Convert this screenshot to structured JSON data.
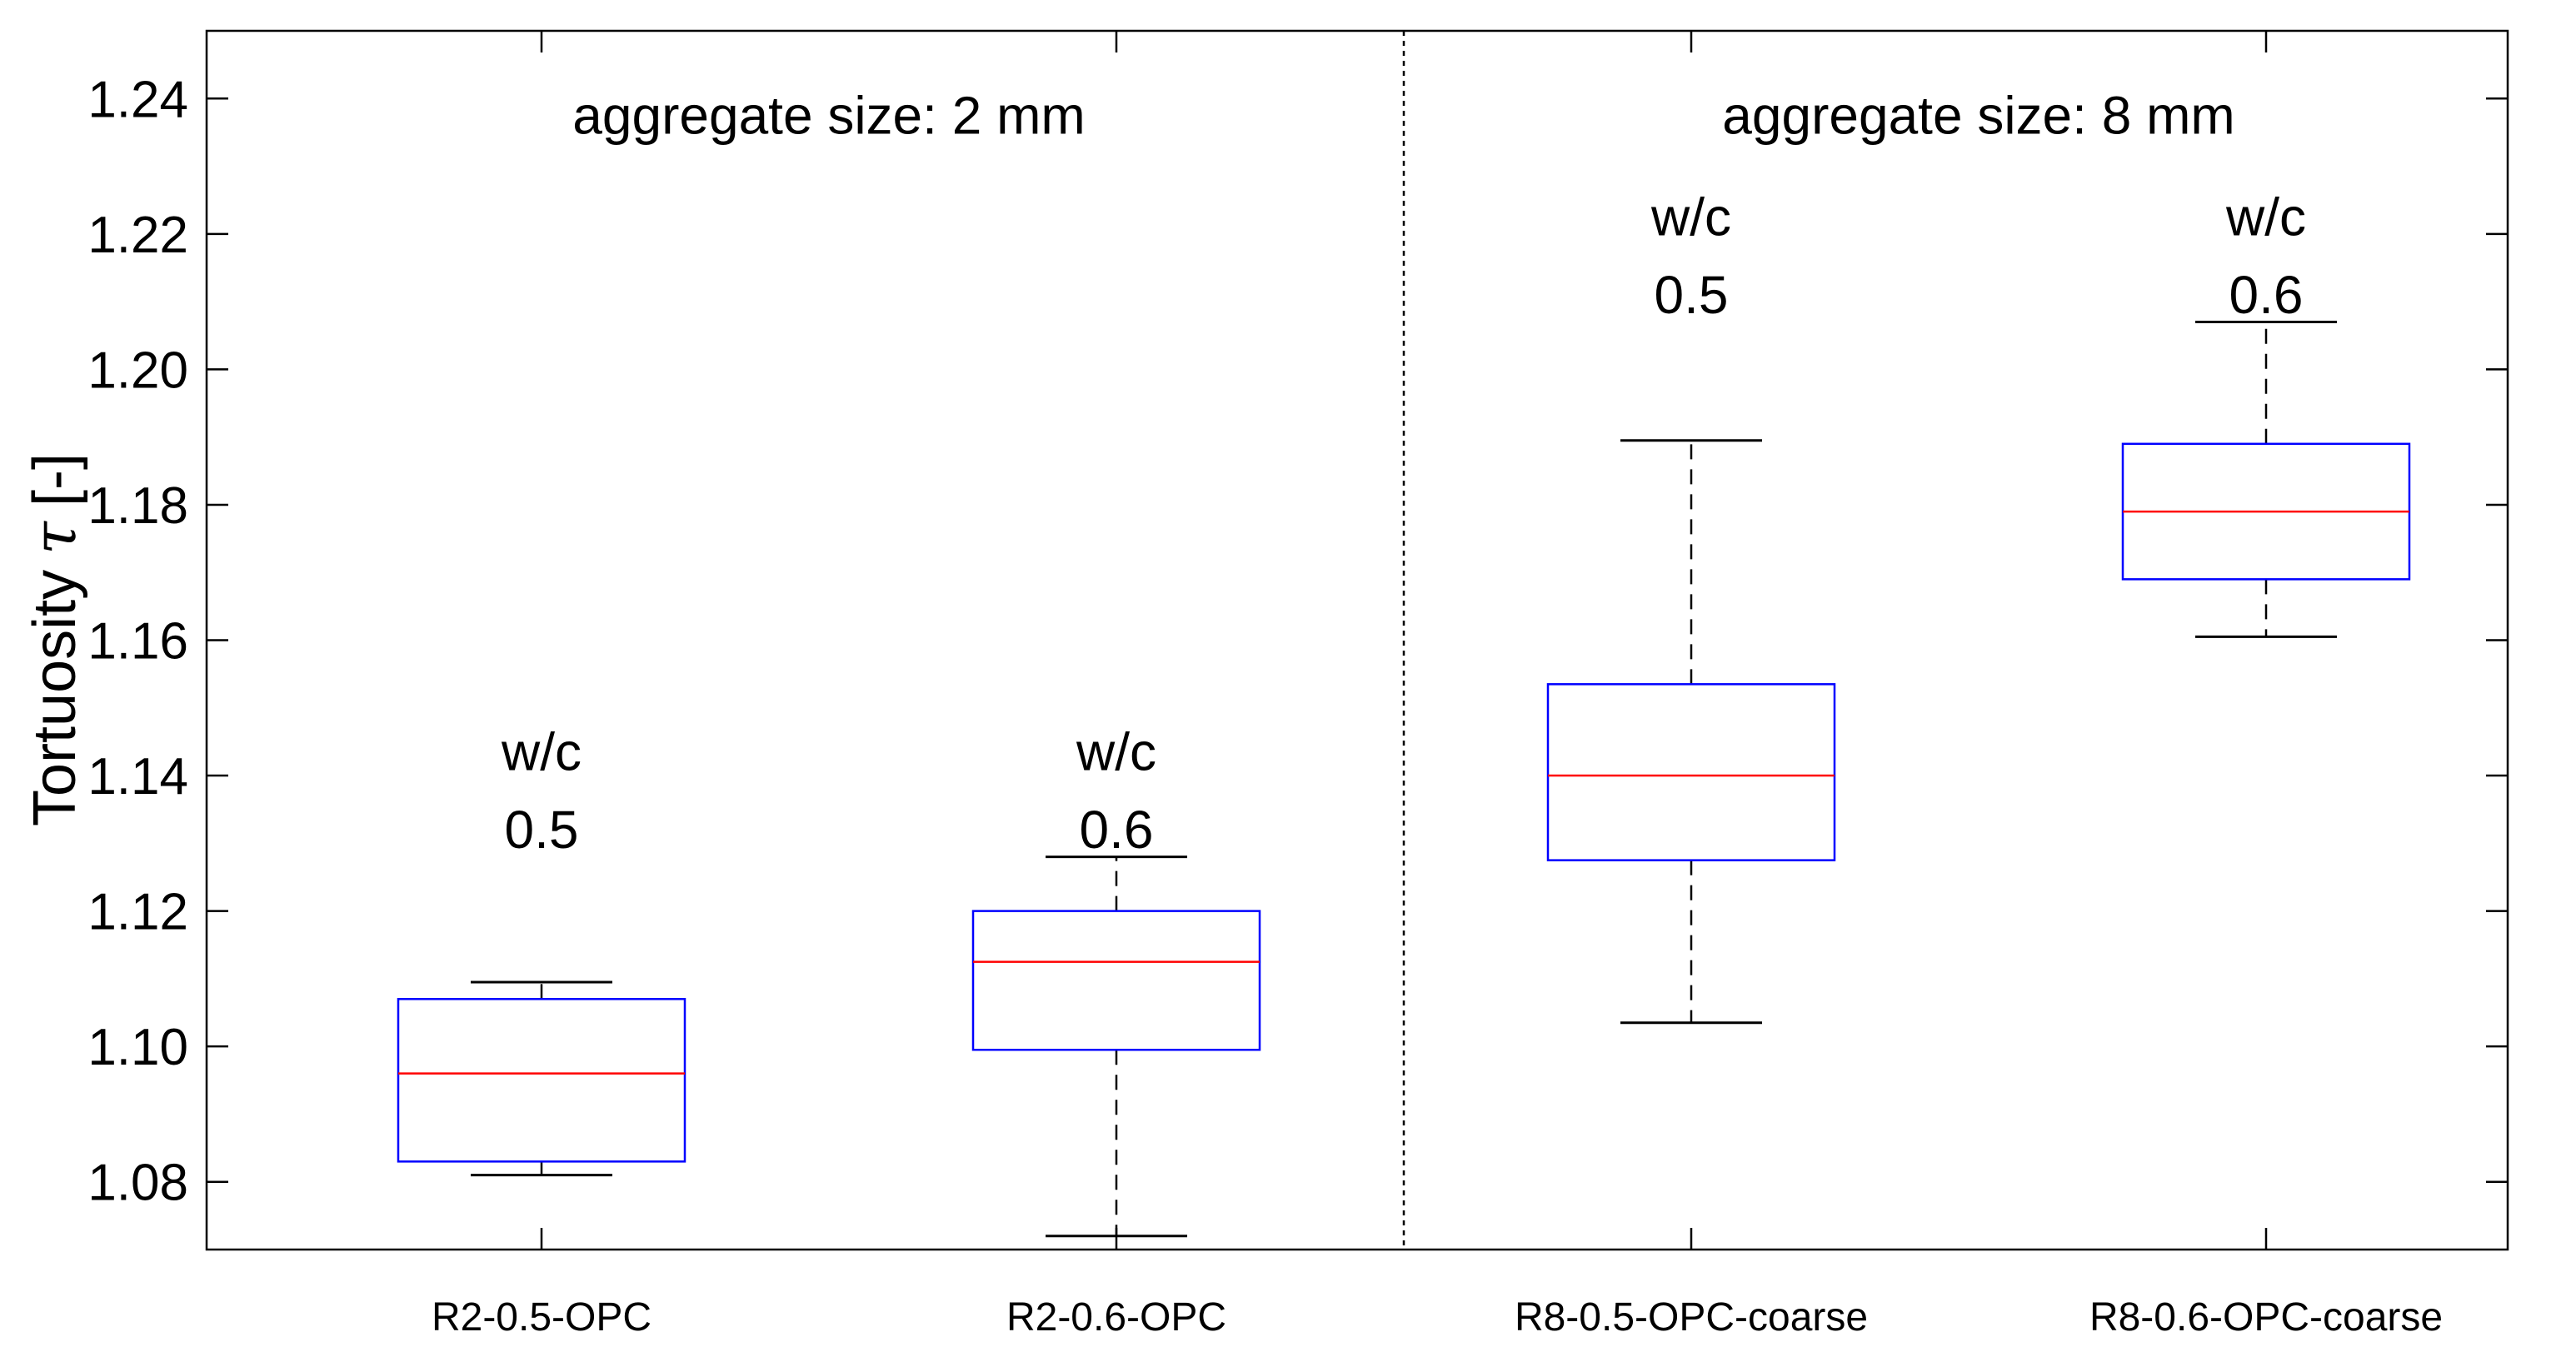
{
  "chart_data": {
    "type": "box",
    "ylabel": "Tortuosity",
    "ylabel_symbol": "τ",
    "ylabel_unit": "[-]",
    "ylim": [
      1.07,
      1.25
    ],
    "yticks": [
      "1.08",
      "1.10",
      "1.12",
      "1.14",
      "1.16",
      "1.18",
      "1.20",
      "1.22",
      "1.24"
    ],
    "ytick_values": [
      1.08,
      1.1,
      1.12,
      1.14,
      1.16,
      1.18,
      1.2,
      1.22,
      1.24
    ],
    "categories": [
      "R2-0.5-OPC",
      "R2-0.6-OPC",
      "R8-0.5-OPC-coarse",
      "R8-0.6-OPC-coarse"
    ],
    "boxes": [
      {
        "whisker_low": 1.081,
        "q1": 1.083,
        "median": 1.096,
        "q3": 1.107,
        "whisker_high": 1.1095
      },
      {
        "whisker_low": 1.072,
        "q1": 1.0995,
        "median": 1.1125,
        "q3": 1.12,
        "whisker_high": 1.128
      },
      {
        "whisker_low": 1.1035,
        "q1": 1.1275,
        "median": 1.14,
        "q3": 1.1535,
        "whisker_high": 1.1895
      },
      {
        "whisker_low": 1.1605,
        "q1": 1.169,
        "median": 1.179,
        "q3": 1.189,
        "whisker_high": 1.207
      }
    ],
    "annotations": [
      {
        "line1": "w/c",
        "line2": "0.5",
        "category_index": 0,
        "y1": 1.1435,
        "y2": 1.132
      },
      {
        "line1": "w/c",
        "line2": "0.6",
        "category_index": 1,
        "y1": 1.1435,
        "y2": 1.132
      },
      {
        "line1": "w/c",
        "line2": "0.5",
        "category_index": 2,
        "y1": 1.2225,
        "y2": 1.211
      },
      {
        "line1": "w/c",
        "line2": "0.6",
        "category_index": 3,
        "y1": 1.2225,
        "y2": 1.211
      }
    ],
    "group_titles": [
      {
        "text": "aggregate size: 2 mm",
        "center": 0.5,
        "y": 1.2375
      },
      {
        "text": "aggregate size: 8 mm",
        "center": 2.5,
        "y": 1.2375
      }
    ],
    "separator_after_index": 1.5,
    "colors": {
      "box": "#0000ff",
      "median": "#ff0000",
      "whisker": "#000000",
      "axis": "#000000"
    }
  }
}
